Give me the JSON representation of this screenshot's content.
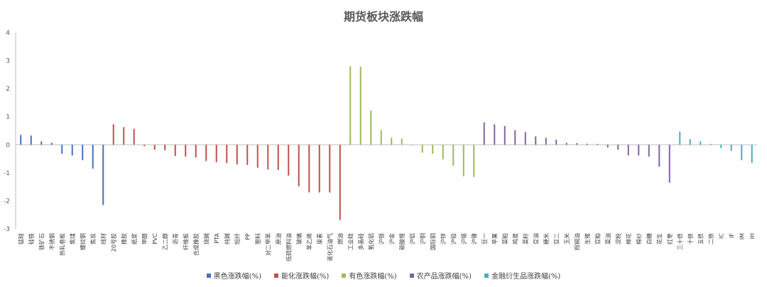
{
  "chart_data": {
    "type": "bar",
    "title": "期货板块涨跌幅",
    "xlabel": "",
    "ylabel": "",
    "ylim": [
      -3,
      4
    ],
    "yticks": [
      -3,
      -2,
      -1,
      0,
      1,
      2,
      3,
      4
    ],
    "grid": false,
    "legend_position": "bottom",
    "series": [
      {
        "name": "黑色涨跌幅(%)",
        "color": "#4472C4",
        "points": [
          {
            "category": "锰硅",
            "value": 0.35
          },
          {
            "category": "硅铁",
            "value": 0.33
          },
          {
            "category": "铁矿石",
            "value": 0.12
          },
          {
            "category": "不锈钢",
            "value": 0.07
          },
          {
            "category": "热轧卷板",
            "value": -0.32
          },
          {
            "category": "焦煤",
            "value": -0.38
          },
          {
            "category": "螺纹钢",
            "value": -0.55
          },
          {
            "category": "焦炭",
            "value": -0.85
          },
          {
            "category": "线材",
            "value": -2.15
          }
        ]
      },
      {
        "name": "能化涨跌幅(%)",
        "color": "#C0504D",
        "points": [
          {
            "category": "20号胶",
            "value": 0.73
          },
          {
            "category": "橡胶",
            "value": 0.63
          },
          {
            "category": "纸浆",
            "value": 0.57
          },
          {
            "category": "甲醇",
            "value": -0.05
          },
          {
            "category": "PVC",
            "value": -0.18
          },
          {
            "category": "乙二醇",
            "value": -0.2
          },
          {
            "category": "沥青",
            "value": -0.4
          },
          {
            "category": "纤维板",
            "value": -0.42
          },
          {
            "category": "合成橡胶",
            "value": -0.45
          },
          {
            "category": "烧碱",
            "value": -0.58
          },
          {
            "category": "PTA",
            "value": -0.62
          },
          {
            "category": "纯碱",
            "value": -0.65
          },
          {
            "category": "短纤",
            "value": -0.7
          },
          {
            "category": "PP",
            "value": -0.72
          },
          {
            "category": "塑料",
            "value": -0.82
          },
          {
            "category": "对二甲苯",
            "value": -0.88
          },
          {
            "category": "原油",
            "value": -0.9
          },
          {
            "category": "低硫燃料油",
            "value": -1.1
          },
          {
            "category": "玻璃",
            "value": -1.48
          },
          {
            "category": "苯乙烯",
            "value": -1.7
          },
          {
            "category": "尿素",
            "value": -1.7
          },
          {
            "category": "液化石油气",
            "value": -1.7
          },
          {
            "category": "燃油",
            "value": -2.68
          }
        ]
      },
      {
        "name": "有色涨跌幅(%)",
        "color": "#9BBB59",
        "points": [
          {
            "category": "工业硅",
            "value": 2.8
          },
          {
            "category": "多晶硅",
            "value": 2.78
          },
          {
            "category": "氧化铝",
            "value": 1.22
          },
          {
            "category": "沪银",
            "value": 0.52
          },
          {
            "category": "沪金",
            "value": 0.25
          },
          {
            "category": "碳酸锂",
            "value": 0.22
          },
          {
            "category": "沪铝",
            "value": -0.02
          },
          {
            "category": "沪铜",
            "value": -0.28
          },
          {
            "category": "国际铜",
            "value": -0.32
          },
          {
            "category": "沪锌",
            "value": -0.52
          },
          {
            "category": "沪铅",
            "value": -0.75
          },
          {
            "category": "沪锡",
            "value": -1.12
          },
          {
            "category": "沪镍",
            "value": -1.15
          }
        ]
      },
      {
        "name": "农产品涨跌幅(%)",
        "color": "#8064A2",
        "points": [
          {
            "category": "豆一",
            "value": 0.8
          },
          {
            "category": "苹果",
            "value": 0.73
          },
          {
            "category": "菜粕",
            "value": 0.67
          },
          {
            "category": "鸡蛋",
            "value": 0.52
          },
          {
            "category": "菜籽",
            "value": 0.45
          },
          {
            "category": "豆油",
            "value": 0.3
          },
          {
            "category": "粳米",
            "value": 0.25
          },
          {
            "category": "豆二",
            "value": 0.18
          },
          {
            "category": "玉米",
            "value": 0.07
          },
          {
            "category": "棕榈油",
            "value": 0.06
          },
          {
            "category": "生猪",
            "value": 0.04
          },
          {
            "category": "豆粕",
            "value": 0.03
          },
          {
            "category": "菜油",
            "value": -0.1
          },
          {
            "category": "淀粉",
            "value": -0.18
          },
          {
            "category": "棉花",
            "value": -0.38
          },
          {
            "category": "棉纱",
            "value": -0.38
          },
          {
            "category": "白糖",
            "value": -0.42
          },
          {
            "category": "花生",
            "value": -0.78
          },
          {
            "category": "红枣",
            "value": -1.35
          }
        ]
      },
      {
        "name": "金融衍生品涨跌幅(%)",
        "color": "#4BACC6",
        "points": [
          {
            "category": "三十债",
            "value": 0.47
          },
          {
            "category": "十债",
            "value": 0.2
          },
          {
            "category": "五债",
            "value": 0.12
          },
          {
            "category": "二债",
            "value": 0.03
          },
          {
            "category": "IC",
            "value": -0.12
          },
          {
            "category": "IF",
            "value": -0.22
          },
          {
            "category": "IM",
            "value": -0.55
          },
          {
            "category": "IH",
            "value": -0.65
          }
        ]
      }
    ]
  }
}
